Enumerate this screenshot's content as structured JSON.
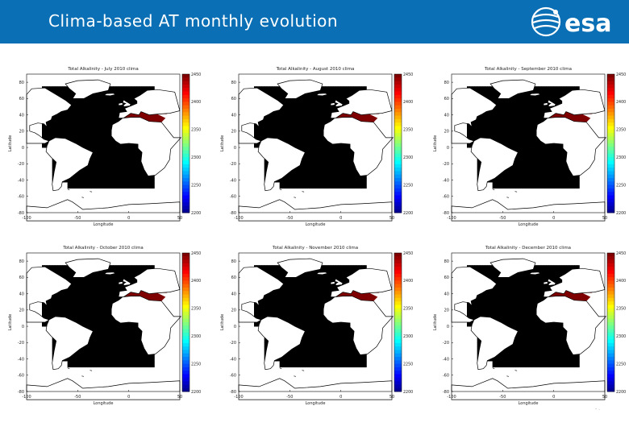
{
  "page": {
    "title": "Clima-based AT monthly evolution",
    "logo_text": "esa",
    "footer_mark": "- ."
  },
  "colors": {
    "header_bg": "#0a6fb4",
    "land_fill": "#ffffff",
    "coast_line": "#000000"
  },
  "icons": {
    "logo": "esa-logo-icon"
  },
  "chart_data": [
    {
      "type": "heatmap",
      "title": "Total Alkalinity - July 2010 clima",
      "xlabel": "Longitude",
      "ylabel": "Latitude",
      "xlim": [
        -100,
        50
      ],
      "ylim": [
        -80,
        90
      ],
      "xticks": [
        "-100",
        "-50",
        "0",
        "50"
      ],
      "yticks": [
        "80",
        "60",
        "40",
        "20",
        "0",
        "-20",
        "-40",
        "-60",
        "-80"
      ],
      "colorbar": {
        "min": 2200,
        "max": 2450,
        "ticks": [
          "2450",
          "2400",
          "2350",
          "2300",
          "2250",
          "2200"
        ]
      }
    },
    {
      "type": "heatmap",
      "title": "Total Alkalinity - August 2010 clima",
      "xlabel": "Longitude",
      "ylabel": "Latitude",
      "xlim": [
        -100,
        50
      ],
      "ylim": [
        -80,
        90
      ],
      "xticks": [
        "-100",
        "-50",
        "0",
        "50"
      ],
      "yticks": [
        "80",
        "60",
        "40",
        "20",
        "0",
        "-20",
        "-40",
        "-60",
        "-80"
      ],
      "colorbar": {
        "min": 2200,
        "max": 2450,
        "ticks": [
          "2450",
          "2400",
          "2350",
          "2300",
          "2250",
          "2200"
        ]
      }
    },
    {
      "type": "heatmap",
      "title": "Total Alkalinity - September 2010 clima",
      "xlabel": "Longitude",
      "ylabel": "Latitude",
      "xlim": [
        -100,
        50
      ],
      "ylim": [
        -80,
        90
      ],
      "xticks": [
        "-100",
        "-50",
        "0",
        "50"
      ],
      "yticks": [
        "80",
        "60",
        "40",
        "20",
        "0",
        "-20",
        "-40",
        "-60",
        "-80"
      ],
      "colorbar": {
        "min": 2200,
        "max": 2450,
        "ticks": [
          "2450",
          "2400",
          "2350",
          "2300",
          "2250",
          "2200"
        ]
      }
    },
    {
      "type": "heatmap",
      "title": "Total Alkalinity - October 2010 clima",
      "xlabel": "Longitude",
      "ylabel": "Latitude",
      "xlim": [
        -100,
        50
      ],
      "ylim": [
        -80,
        90
      ],
      "xticks": [
        "-100",
        "-50",
        "0",
        "50"
      ],
      "yticks": [
        "80",
        "60",
        "40",
        "20",
        "0",
        "-20",
        "-40",
        "-60",
        "-80"
      ],
      "colorbar": {
        "min": 2200,
        "max": 2450,
        "ticks": [
          "2450",
          "2400",
          "2350",
          "2300",
          "2250",
          "2200"
        ]
      }
    },
    {
      "type": "heatmap",
      "title": "Total Alkalinity - November 2010 clima",
      "xlabel": "Longitude",
      "ylabel": "Latitude",
      "xlim": [
        -100,
        50
      ],
      "ylim": [
        -80,
        90
      ],
      "xticks": [
        "-100",
        "-50",
        "0",
        "50"
      ],
      "yticks": [
        "80",
        "60",
        "40",
        "20",
        "0",
        "-20",
        "-40",
        "-60",
        "-80"
      ],
      "colorbar": {
        "min": 2200,
        "max": 2450,
        "ticks": [
          "2450",
          "2400",
          "2350",
          "2300",
          "2250",
          "2200"
        ]
      }
    },
    {
      "type": "heatmap",
      "title": "Total Alkalinity - December 2010 clima",
      "xlabel": "Longitude",
      "ylabel": "Latitude",
      "xlim": [
        -100,
        50
      ],
      "ylim": [
        -80,
        90
      ],
      "xticks": [
        "-100",
        "-50",
        "0",
        "50"
      ],
      "yticks": [
        "80",
        "60",
        "40",
        "20",
        "0",
        "-20",
        "-40",
        "-60",
        "-80"
      ],
      "colorbar": {
        "min": 2200,
        "max": 2450,
        "ticks": [
          "2450",
          "2400",
          "2350",
          "2300",
          "2250",
          "2200"
        ]
      }
    }
  ]
}
